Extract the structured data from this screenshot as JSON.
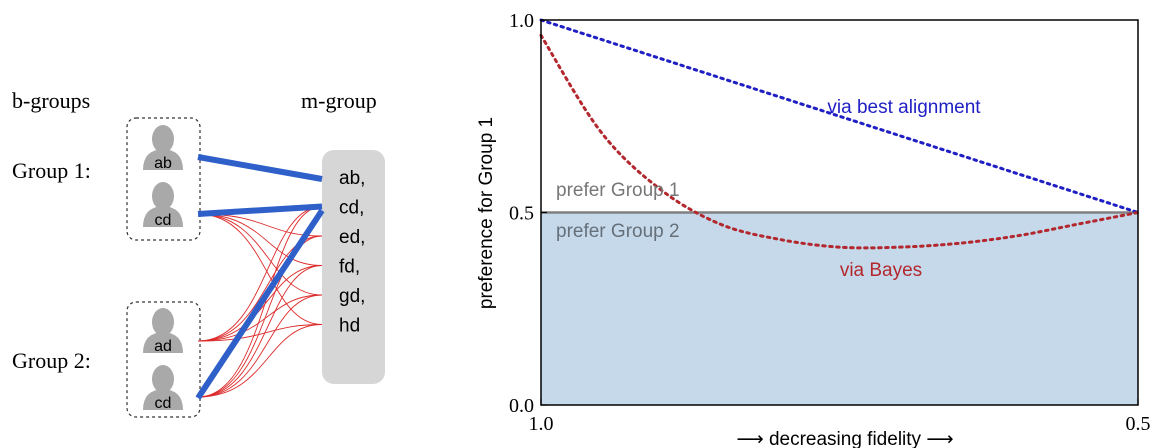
{
  "diagram": {
    "b_groups_label": "b-groups",
    "m_group_label": "m-group",
    "group1_label": "Group 1:",
    "group2_label": "Group 2:",
    "group1_members": [
      "ab",
      "cd"
    ],
    "group2_members": [
      "ad",
      "cd"
    ],
    "m_group_items": [
      "ab,",
      "cd,",
      "ed,",
      "fd,",
      "gd,",
      "hd"
    ],
    "colors": {
      "thick_link": "#2f5fc8",
      "thin_link": "#dd2b2b",
      "avatar": "#a9a9a9",
      "m_box": "#d6d6d6"
    },
    "icons": [
      "person-icon"
    ]
  },
  "chart_data": {
    "type": "line",
    "title": "",
    "xlabel": "⟶ decreasing fidelity ⟶",
    "ylabel": "preference for Group 1",
    "x_ticks": [
      "1.0",
      "0.5"
    ],
    "y_ticks": [
      "0.0",
      "0.5",
      "1.0"
    ],
    "xlim": [
      1.0,
      0.5
    ],
    "ylim": [
      0.0,
      1.0
    ],
    "x_reversed": true,
    "series": [
      {
        "name": "via best alignment",
        "style": "dotted",
        "color": "#1f1fc4",
        "x": [
          1.0,
          0.5
        ],
        "y": [
          1.0,
          0.5
        ]
      },
      {
        "name": "via Bayes",
        "style": "dotted",
        "color": "#b3282e",
        "x": [
          1.0,
          0.95,
          0.9,
          0.85,
          0.8,
          0.75,
          0.7,
          0.65,
          0.6,
          0.55,
          0.5
        ],
        "y": [
          0.96,
          0.71,
          0.56,
          0.47,
          0.43,
          0.41,
          0.41,
          0.42,
          0.44,
          0.47,
          0.5
        ]
      }
    ],
    "reference_line": {
      "y": 0.5,
      "color": "#808080"
    },
    "shaded_region": {
      "y_from": 0.0,
      "y_to": 0.5,
      "color": "#c5d9ea"
    },
    "annotations": {
      "prefer_group_1": "prefer Group 1",
      "prefer_group_2": "prefer Group 2"
    }
  }
}
